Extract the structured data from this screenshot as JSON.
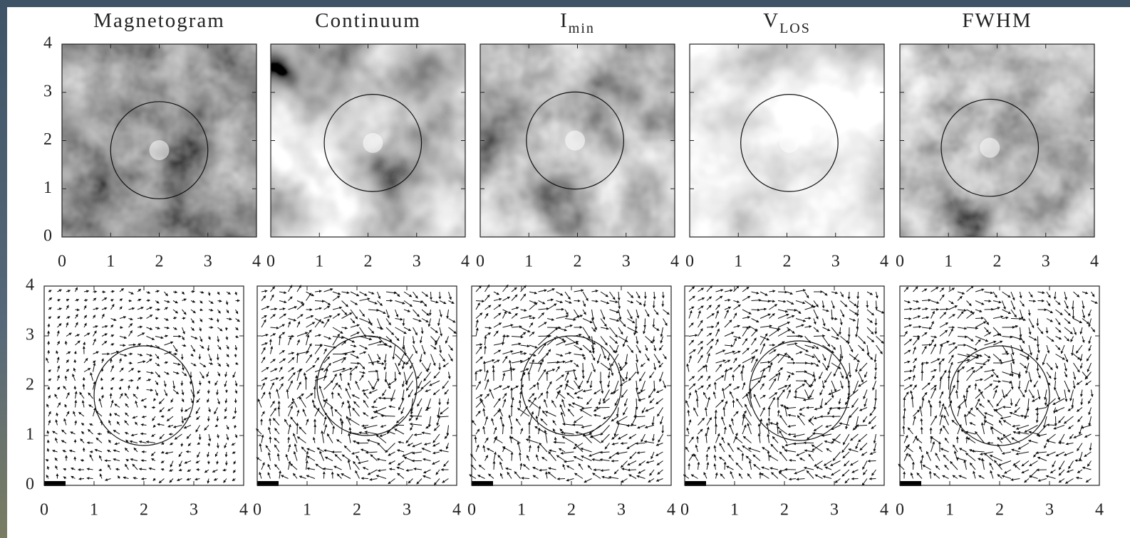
{
  "panels": [
    {
      "title": "Magnetogram"
    },
    {
      "title": "Continuum"
    },
    {
      "title": "I",
      "title_subscript": "min"
    },
    {
      "title": "V",
      "title_subscript": "LOS"
    },
    {
      "title": "FWHM"
    }
  ],
  "axes": {
    "range": [
      0,
      4
    ],
    "ticks": [
      0,
      1,
      2,
      3,
      4
    ]
  }
}
